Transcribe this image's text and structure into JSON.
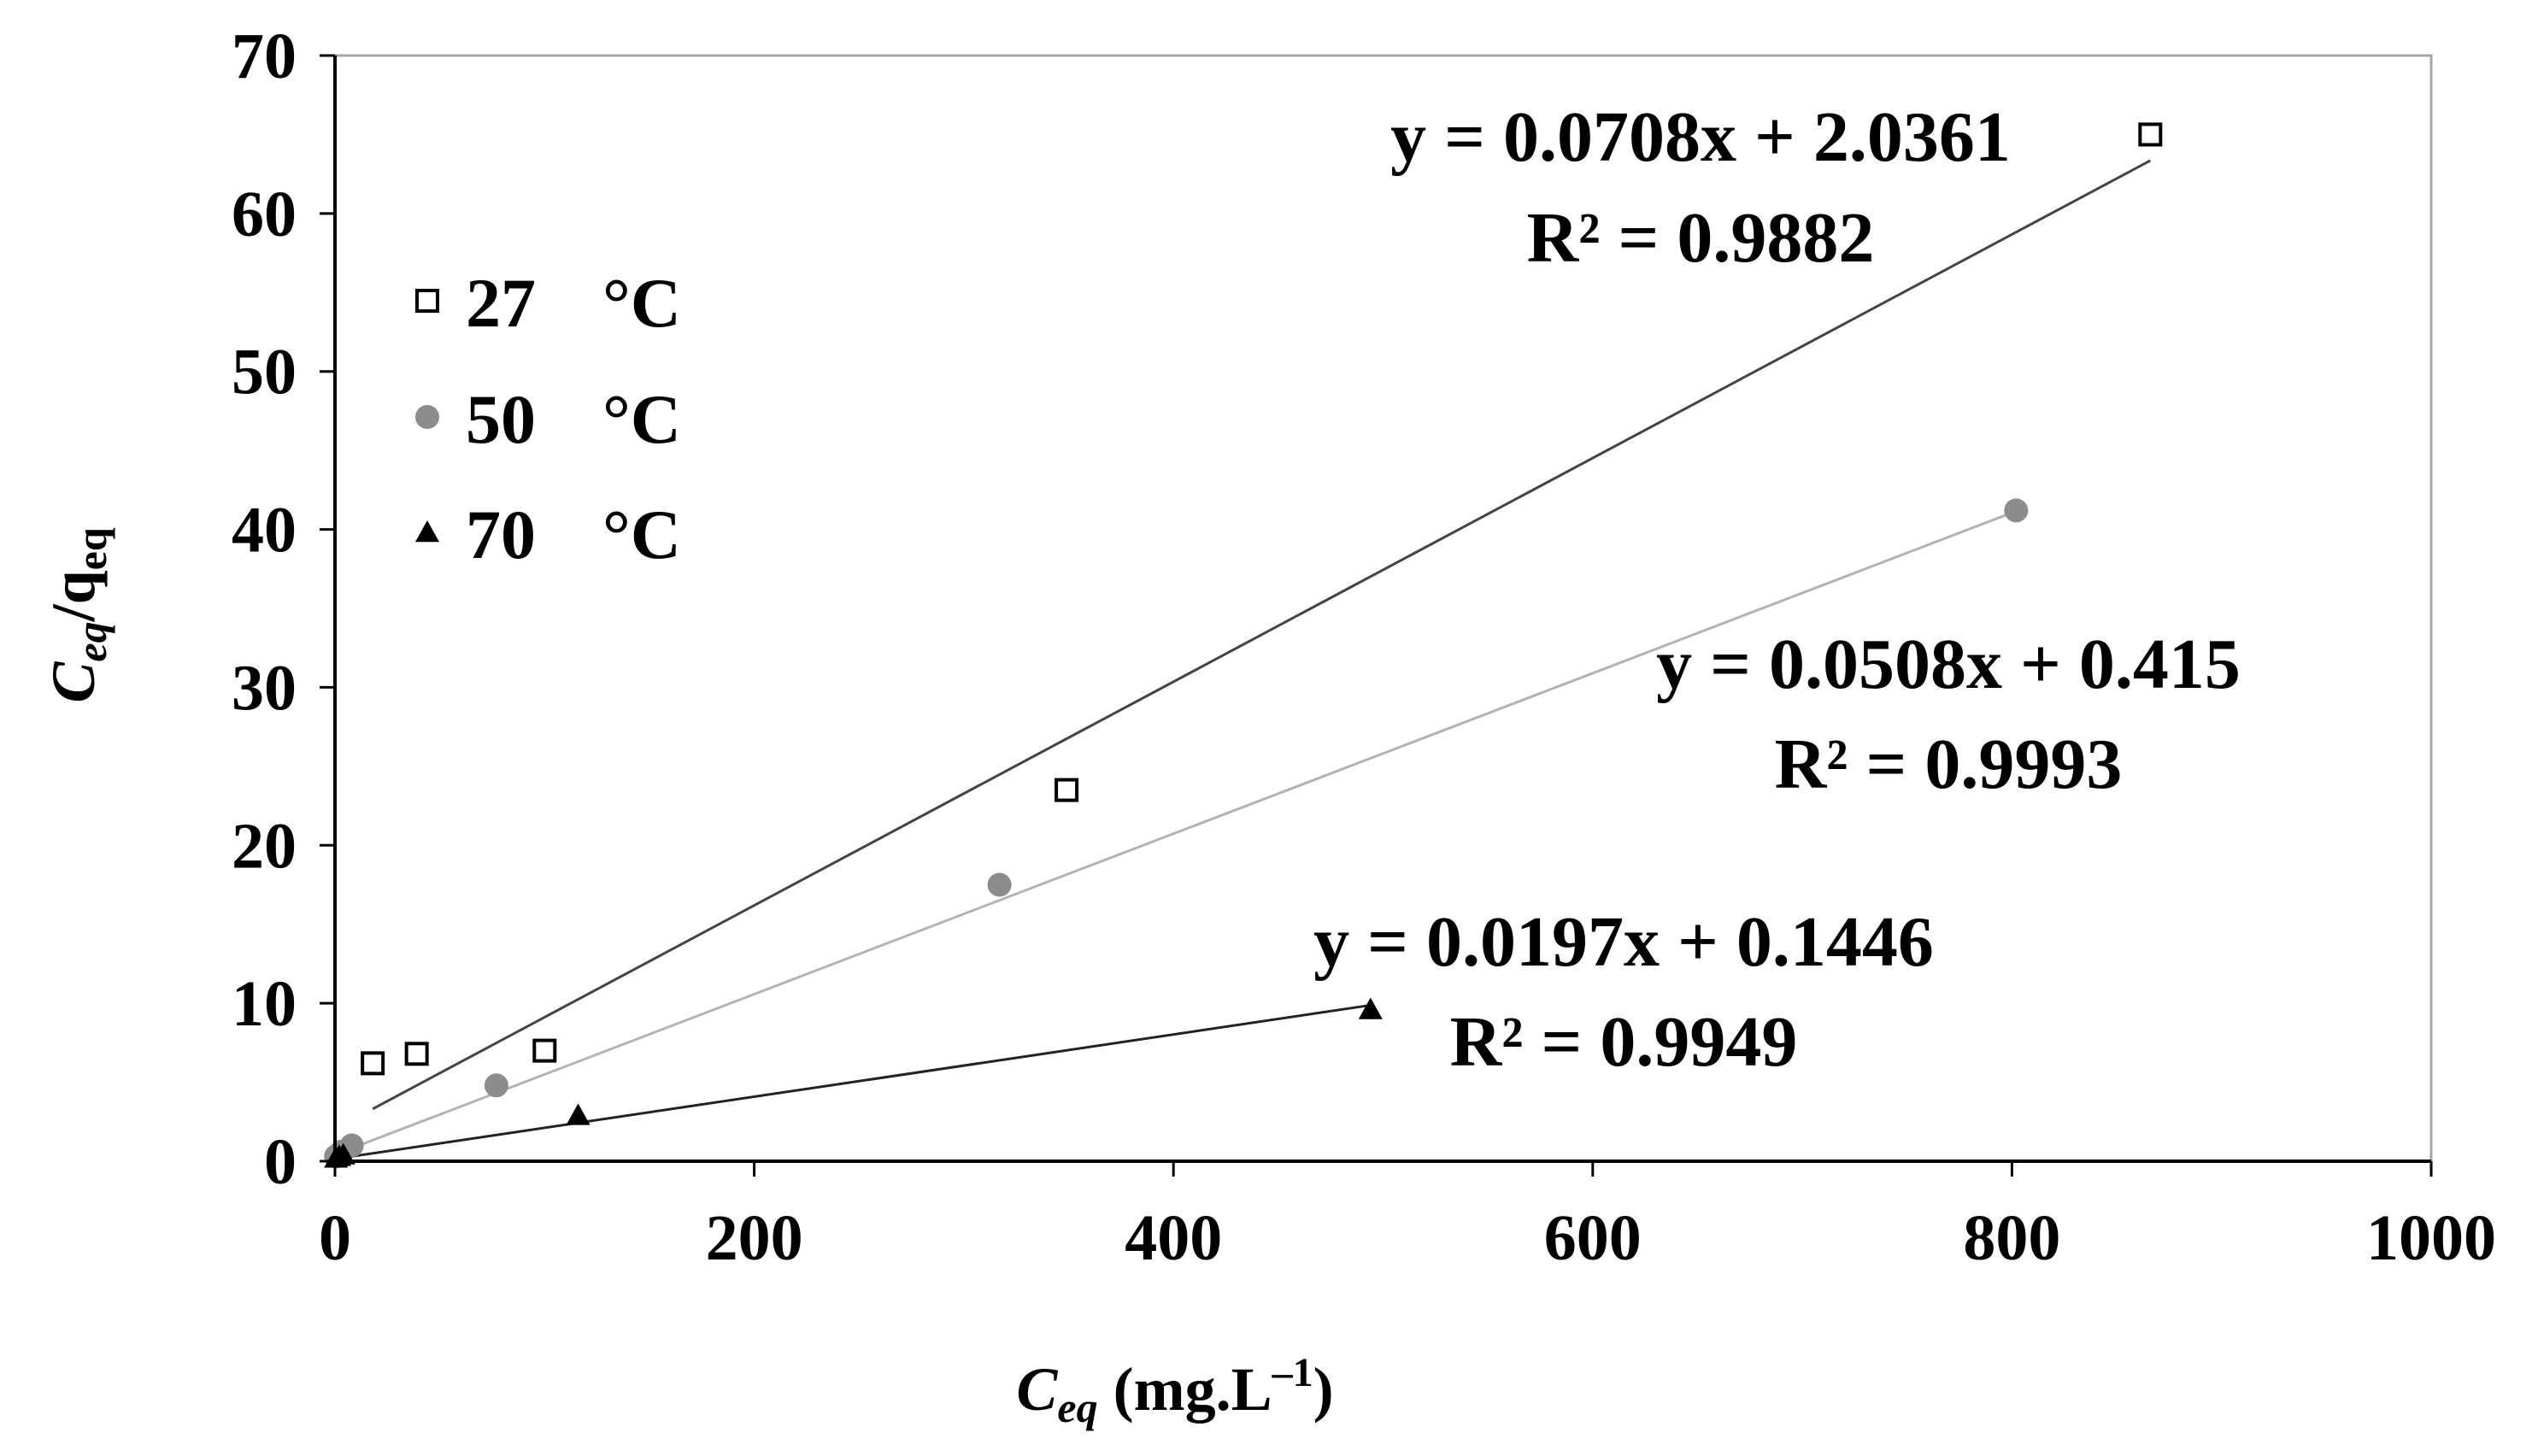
{
  "chart_data": {
    "type": "scatter",
    "xlabel": {
      "main": "C",
      "sub": "eq",
      "unit": " (mg.L",
      "sup": "–1",
      "close": ")"
    },
    "ylabel": {
      "main": "C",
      "sub": "eq",
      "slash": "/q",
      "sub2": "eq"
    },
    "xlim": [
      0,
      1000
    ],
    "ylim": [
      0,
      70
    ],
    "x_ticks": [
      0,
      200,
      400,
      600,
      800,
      1000
    ],
    "y_ticks": [
      0,
      10,
      20,
      30,
      40,
      50,
      60,
      70
    ],
    "grid": false,
    "legend_position": "top-left",
    "series": [
      {
        "name": "27",
        "unit": "°C",
        "marker": "open-square",
        "color": "#000000",
        "line_color": "#444444",
        "points": [
          [
            18,
            6.2
          ],
          [
            39,
            6.8
          ],
          [
            100,
            7.0
          ],
          [
            349,
            23.5
          ],
          [
            866,
            65.0
          ]
        ],
        "fit": {
          "slope": 0.0708,
          "intercept": 2.0361,
          "x_range": [
            18,
            866
          ]
        },
        "equation": "y = 0.0708x + 2.0361",
        "r2": "R² = 0.9882"
      },
      {
        "name": "50",
        "unit": "°C",
        "marker": "filled-circle",
        "color": "#8c8c8c",
        "line_color": "#b3b3b3",
        "points": [
          [
            0.5,
            0.3
          ],
          [
            3,
            0.6
          ],
          [
            8,
            1.0
          ],
          [
            77,
            4.8
          ],
          [
            317,
            17.5
          ],
          [
            802,
            41.2
          ]
        ],
        "fit": {
          "slope": 0.0508,
          "intercept": 0.415,
          "x_range": [
            0,
            802
          ]
        },
        "equation": "y = 0.0508x + 0.415",
        "r2": "R² = 0.9993"
      },
      {
        "name": "70",
        "unit": "°C",
        "marker": "filled-triangle",
        "color": "#000000",
        "line_color": "#222222",
        "points": [
          [
            0.5,
            0.2
          ],
          [
            2,
            0.3
          ],
          [
            4,
            0.4
          ],
          [
            116,
            2.9
          ],
          [
            494,
            9.6
          ]
        ],
        "fit": {
          "slope": 0.0197,
          "intercept": 0.1446,
          "x_range": [
            0,
            494
          ]
        },
        "equation": "y = 0.0197x + 0.1446",
        "r2": "R² = 0.9949"
      }
    ]
  }
}
